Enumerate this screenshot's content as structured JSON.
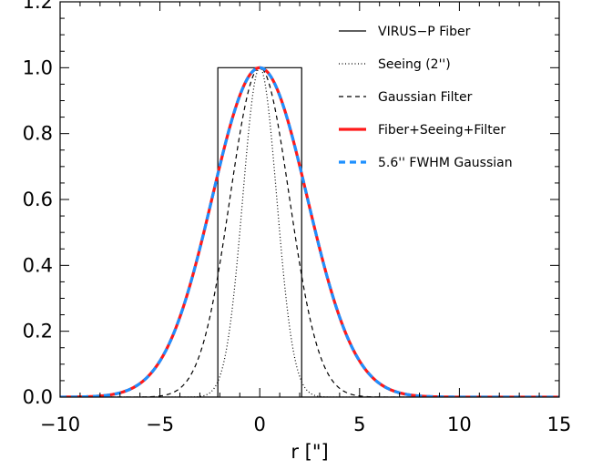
{
  "chart_data": {
    "type": "line",
    "title": "",
    "xlabel": "r [\"]",
    "ylabel": "",
    "xlim": [
      -10,
      15
    ],
    "ylim": [
      0,
      1.2
    ],
    "xticks": [
      -10,
      -5,
      0,
      5,
      10,
      15
    ],
    "xtick_labels": [
      "−10",
      "−5",
      "0",
      "5",
      "10",
      "15"
    ],
    "yticks": [
      0.0,
      0.2,
      0.4,
      0.6,
      0.8,
      1.0,
      1.2
    ],
    "ytick_labels": [
      "0.0",
      "0.2",
      "0.4",
      "0.6",
      "0.8",
      "1.0",
      "1.2"
    ],
    "grid": false,
    "legend_position": "top-right",
    "series": [
      {
        "name": "VIRUS−P Fiber",
        "color": "#000000",
        "style": "solid",
        "shape": "tophat",
        "x": [
          -10,
          -2.1,
          -2.1,
          2.1,
          2.1,
          15
        ],
        "y": [
          0,
          0,
          1,
          1,
          0,
          0
        ]
      },
      {
        "name": "Seeing (2'')",
        "color": "#000000",
        "style": "dotted",
        "shape": "gaussian",
        "center": 0,
        "fwhm": 2,
        "x": [
          -3,
          -2,
          -1,
          0,
          1,
          2,
          3
        ],
        "y": [
          0.0,
          0.06,
          0.5,
          1.0,
          0.5,
          0.06,
          0.0
        ]
      },
      {
        "name": "Gaussian Filter",
        "color": "#000000",
        "style": "dashed",
        "shape": "gaussian",
        "center": 0,
        "fwhm": 3.5,
        "x": [
          -6,
          -4,
          -2,
          0,
          2,
          4,
          6
        ],
        "y": [
          0.01,
          0.1,
          0.57,
          1.0,
          0.57,
          0.1,
          0.01
        ]
      },
      {
        "name": "Fiber+Seeing+Filter",
        "color": "#ff1a1a",
        "style": "solid-thick",
        "shape": "gaussian",
        "center": 0,
        "fwhm": 5.6,
        "x": [
          -8,
          -6,
          -4,
          -2,
          0,
          2,
          4,
          6,
          8
        ],
        "y": [
          0.0,
          0.07,
          0.29,
          0.74,
          1.0,
          0.74,
          0.29,
          0.07,
          0.0
        ]
      },
      {
        "name": "5.6'' FWHM Gaussian",
        "color": "#1e90ff",
        "style": "dashed-thick",
        "shape": "gaussian",
        "center": 0,
        "fwhm": 5.6,
        "x": [
          -8,
          -6,
          -4,
          -2,
          0,
          2,
          4,
          6,
          8
        ],
        "y": [
          0.0,
          0.07,
          0.29,
          0.74,
          1.0,
          0.74,
          0.29,
          0.07,
          0.0
        ]
      }
    ]
  }
}
